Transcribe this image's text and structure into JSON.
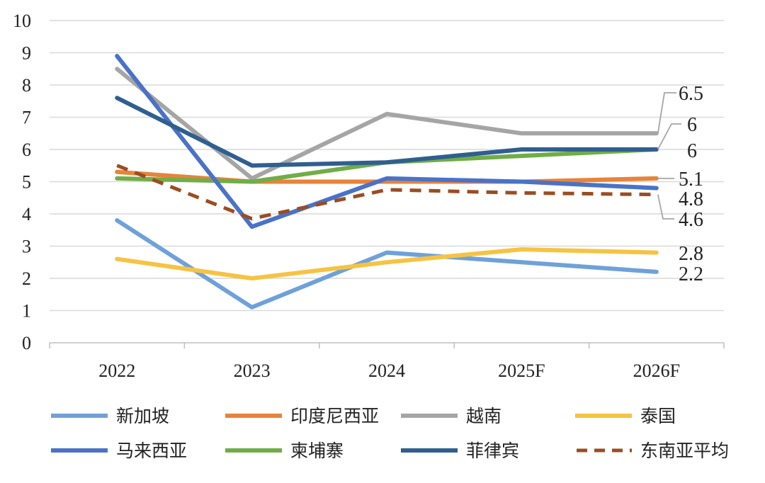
{
  "chart_data": {
    "type": "line",
    "title": "",
    "xlabel": "",
    "ylabel": "",
    "ylim": [
      0,
      10
    ],
    "yticks": [
      0,
      1,
      2,
      3,
      4,
      5,
      6,
      7,
      8,
      9,
      10
    ],
    "categories": [
      "2022",
      "2023",
      "2024",
      "2025F",
      "2026F"
    ],
    "grid": true,
    "legend_position": "bottom",
    "series": [
      {
        "name": "新加坡",
        "color": "#6fa1d9",
        "dashed": false,
        "values": [
          3.8,
          1.1,
          2.8,
          2.5,
          2.2
        ]
      },
      {
        "name": "印度尼西亚",
        "color": "#e8833a",
        "dashed": false,
        "values": [
          5.3,
          5.0,
          5.0,
          5.0,
          5.1
        ]
      },
      {
        "name": "越南",
        "color": "#a5a5a5",
        "dashed": false,
        "values": [
          8.5,
          5.1,
          7.1,
          6.5,
          6.5
        ]
      },
      {
        "name": "泰国",
        "color": "#f6c342",
        "dashed": false,
        "values": [
          2.6,
          2.0,
          2.5,
          2.9,
          2.8
        ]
      },
      {
        "name": "马来西亚",
        "color": "#4a72c7",
        "dashed": false,
        "values": [
          8.9,
          3.6,
          5.1,
          5.0,
          4.8
        ]
      },
      {
        "name": "柬埔寨",
        "color": "#70ad47",
        "dashed": false,
        "values": [
          5.1,
          5.0,
          5.6,
          5.8,
          6.0
        ]
      },
      {
        "name": "菲律宾",
        "color": "#2f5f8f",
        "dashed": false,
        "values": [
          7.6,
          5.5,
          5.6,
          6.0,
          6.0
        ]
      },
      {
        "name": "东南亚平均",
        "color": "#9a4d22",
        "dashed": true,
        "values": [
          5.5,
          3.85,
          4.75,
          4.65,
          4.6
        ]
      }
    ],
    "end_labels": [
      "6.5",
      "6",
      "6",
      "5.1",
      "4.8",
      "4.6",
      "2.8",
      "2.2"
    ]
  }
}
